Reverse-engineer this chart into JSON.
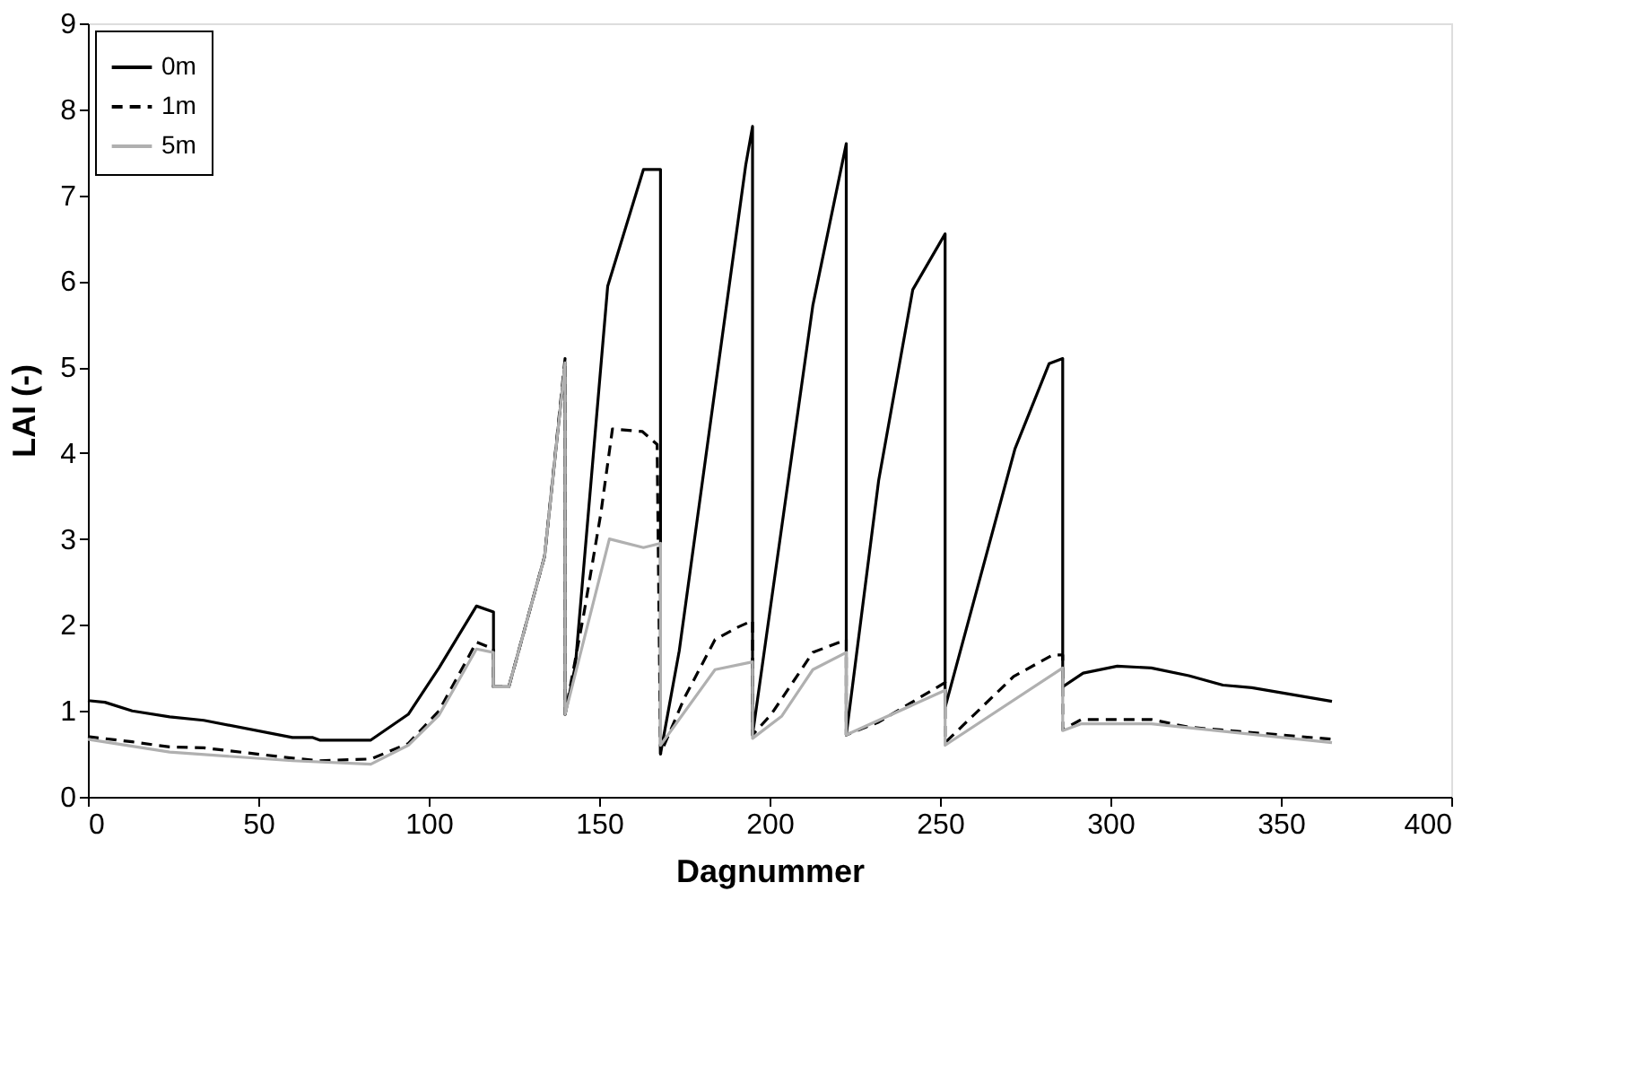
{
  "chart_data": {
    "type": "line",
    "xlabel": "Dagnummer",
    "ylabel": "LAI (-)",
    "xlim": [
      0,
      400
    ],
    "xticks": [
      0,
      50,
      100,
      150,
      200,
      250,
      300,
      350,
      400
    ],
    "ylim": [
      0,
      9
    ],
    "yticks": [
      0,
      1,
      2,
      3,
      4,
      5,
      6,
      7,
      8,
      9
    ],
    "grid": false,
    "legend": "top left",
    "marker": "none",
    "series": [
      {
        "name": "0m",
        "color": "#000000",
        "line_style": "solid",
        "x": [
          0,
          5,
          13,
          24,
          34,
          60,
          66,
          68,
          83,
          94,
          103,
          114,
          119,
          119,
          123.5,
          134,
          140,
          140,
          143,
          152.5,
          163,
          168,
          168,
          173.5,
          193,
          195,
          195,
          212.7,
          222.5,
          222.5,
          232,
          242,
          251.5,
          251.5,
          272,
          282,
          286,
          286,
          292,
          302,
          312,
          323,
          333,
          341.5,
          365
        ],
        "values": [
          1.12,
          1.1,
          1.0,
          0.93,
          0.89,
          0.69,
          0.69,
          0.66,
          0.66,
          0.96,
          1.5,
          2.22,
          2.15,
          1.28,
          1.28,
          2.8,
          5.05,
          0.96,
          1.52,
          5.94,
          7.3,
          7.3,
          0.5,
          1.7,
          7.35,
          7.8,
          0.72,
          5.72,
          7.6,
          0.72,
          3.68,
          5.9,
          6.55,
          1.04,
          4.05,
          5.04,
          5.1,
          1.28,
          1.44,
          1.52,
          1.5,
          1.41,
          1.3,
          1.27,
          1.11
        ]
      },
      {
        "name": "1m",
        "color": "#000000",
        "line_style": "dashed",
        "x": [
          0,
          13,
          24,
          34,
          60,
          68,
          83,
          94,
          103,
          114,
          119,
          119,
          123.5,
          134,
          140,
          140,
          145.6,
          150.5,
          153.9,
          162.7,
          167,
          168,
          168,
          175,
          184,
          191,
          195,
          195,
          200.5,
          212.7,
          222.5,
          222.5,
          232,
          251.5,
          251.5,
          271.6,
          283,
          286,
          286,
          291.5,
          312,
          323,
          365
        ],
        "values": [
          0.7,
          0.64,
          0.58,
          0.57,
          0.45,
          0.42,
          0.44,
          0.62,
          1.0,
          1.8,
          1.72,
          1.28,
          1.28,
          2.8,
          5.1,
          0.96,
          2.15,
          3.3,
          4.28,
          4.25,
          4.1,
          0.5,
          0.5,
          1.15,
          1.83,
          1.98,
          2.05,
          0.72,
          0.96,
          1.68,
          1.83,
          0.72,
          0.87,
          1.33,
          0.63,
          1.4,
          1.65,
          1.65,
          0.78,
          0.9,
          0.9,
          0.81,
          0.67
        ]
      },
      {
        "name": "5m",
        "color": "#b0b0b0",
        "line_style": "solid",
        "x": [
          0,
          24,
          60,
          83,
          94,
          103,
          114,
          119,
          119,
          123.5,
          134,
          140,
          140,
          153,
          163,
          168,
          168,
          184,
          195,
          195,
          203.6,
          212.7,
          222.5,
          222.5,
          251.5,
          251.5,
          286,
          286,
          291.5,
          312,
          365
        ],
        "values": [
          0.67,
          0.52,
          0.42,
          0.38,
          0.6,
          0.95,
          1.72,
          1.68,
          1.28,
          1.28,
          2.8,
          5.05,
          0.96,
          3.0,
          2.9,
          2.95,
          0.6,
          1.48,
          1.57,
          0.68,
          0.94,
          1.48,
          1.68,
          0.72,
          1.24,
          0.6,
          1.5,
          0.77,
          0.85,
          0.85,
          0.63
        ]
      }
    ]
  }
}
